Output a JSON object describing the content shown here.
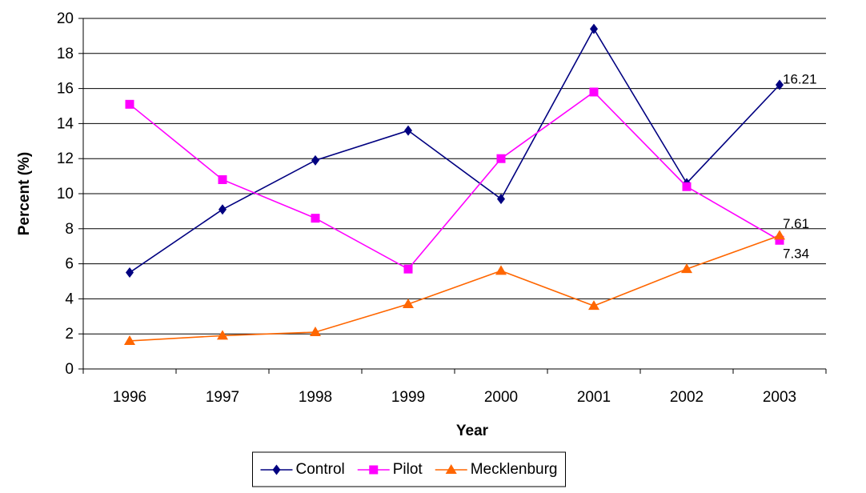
{
  "chart_data": {
    "type": "line",
    "x_label": "Year",
    "y_label": "Percent (%)",
    "categories": [
      "1996",
      "1997",
      "1998",
      "1999",
      "2000",
      "2001",
      "2002",
      "2003"
    ],
    "series": [
      {
        "name": "Control",
        "color": "#000080",
        "marker": "diamond",
        "values": [
          5.5,
          9.1,
          11.9,
          13.6,
          9.7,
          19.4,
          10.6,
          16.21
        ]
      },
      {
        "name": "Pilot",
        "color": "#FF00FF",
        "marker": "square",
        "values": [
          15.1,
          10.8,
          8.6,
          5.7,
          12.0,
          15.8,
          10.4,
          7.34
        ]
      },
      {
        "name": "Mecklenburg",
        "color": "#FF6600",
        "marker": "triangle",
        "values": [
          1.6,
          1.9,
          2.1,
          3.7,
          5.6,
          3.6,
          5.7,
          7.61
        ]
      }
    ],
    "ylim": [
      0,
      20
    ],
    "yticks": [
      0,
      2,
      4,
      6,
      8,
      10,
      12,
      14,
      16,
      18,
      20
    ],
    "grid": true,
    "data_labels": "last",
    "legend": "bottom"
  }
}
